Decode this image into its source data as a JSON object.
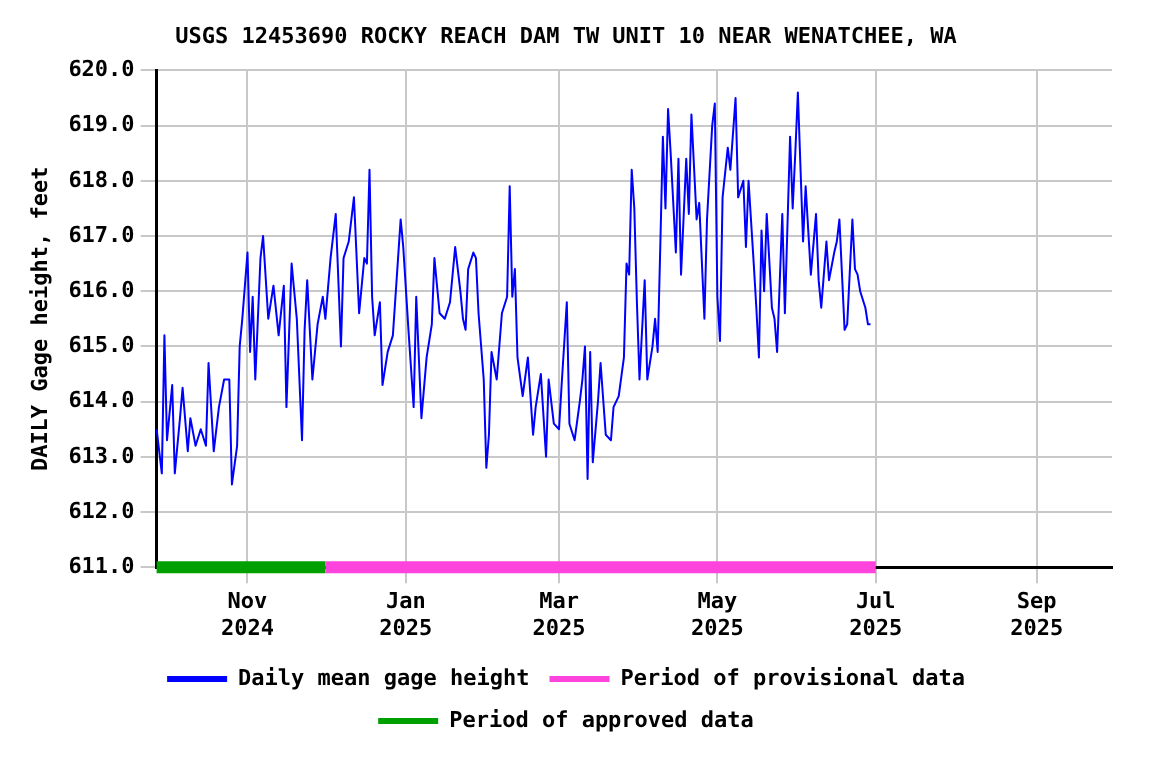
{
  "chart_data": {
    "type": "line",
    "title": "USGS 12453690 ROCKY REACH DAM TW UNIT 10 NEAR WENATCHEE, WA",
    "ylabel": "DAILY Gage height, feet",
    "xlim": [
      "2024-09-27",
      "2025-09-30"
    ],
    "xticks": [
      {
        "value": "2024-11-01",
        "label": "Nov 2024"
      },
      {
        "value": "2025-01-01",
        "label": "Jan 2025"
      },
      {
        "value": "2025-03-01",
        "label": "Mar 2025"
      },
      {
        "value": "2025-05-01",
        "label": "May 2025"
      },
      {
        "value": "2025-07-01",
        "label": "Jul 2025"
      },
      {
        "value": "2025-09-01",
        "label": "Sep 2025"
      }
    ],
    "ylim": [
      611,
      620
    ],
    "yticks": [
      {
        "value": 611,
        "label": "611.0"
      },
      {
        "value": 612,
        "label": "612.0"
      },
      {
        "value": 613,
        "label": "613.0"
      },
      {
        "value": 614,
        "label": "614.0"
      },
      {
        "value": 615,
        "label": "615.0"
      },
      {
        "value": 616,
        "label": "616.0"
      },
      {
        "value": 617,
        "label": "617.0"
      },
      {
        "value": 618,
        "label": "618.0"
      },
      {
        "value": 619,
        "label": "619.0"
      },
      {
        "value": 620,
        "label": "620.0"
      }
    ],
    "grid": true,
    "legend": "bottom",
    "marker": "none",
    "line_style": "solid",
    "series": [
      {
        "name": "Daily mean gage height",
        "color": "#0000ff",
        "x": [
          "2024-09-27",
          "2024-09-29",
          "2024-09-30",
          "2024-10-01",
          "2024-10-03",
          "2024-10-04",
          "2024-10-06",
          "2024-10-07",
          "2024-10-09",
          "2024-10-10",
          "2024-10-12",
          "2024-10-14",
          "2024-10-16",
          "2024-10-17",
          "2024-10-19",
          "2024-10-21",
          "2024-10-23",
          "2024-10-25",
          "2024-10-26",
          "2024-10-28",
          "2024-10-29",
          "2024-10-30",
          "2024-11-01",
          "2024-11-02",
          "2024-11-03",
          "2024-11-04",
          "2024-11-06",
          "2024-11-07",
          "2024-11-09",
          "2024-11-11",
          "2024-11-13",
          "2024-11-15",
          "2024-11-16",
          "2024-11-18",
          "2024-11-20",
          "2024-11-22",
          "2024-11-23",
          "2024-11-24",
          "2024-11-26",
          "2024-11-28",
          "2024-11-30",
          "2024-12-01",
          "2024-12-03",
          "2024-12-05",
          "2024-12-07",
          "2024-12-08",
          "2024-12-10",
          "2024-12-12",
          "2024-12-14",
          "2024-12-16",
          "2024-12-17",
          "2024-12-18",
          "2024-12-19",
          "2024-12-20",
          "2024-12-22",
          "2024-12-23",
          "2024-12-25",
          "2024-12-27",
          "2024-12-29",
          "2024-12-30",
          "2024-12-31",
          "2025-01-02",
          "2025-01-04",
          "2025-01-05",
          "2025-01-07",
          "2025-01-09",
          "2025-01-11",
          "2025-01-12",
          "2025-01-14",
          "2025-01-16",
          "2025-01-18",
          "2025-01-20",
          "2025-01-22",
          "2025-01-23",
          "2025-01-24",
          "2025-01-25",
          "2025-01-27",
          "2025-01-28",
          "2025-01-29",
          "2025-01-31",
          "2025-02-01",
          "2025-02-02",
          "2025-02-03",
          "2025-02-05",
          "2025-02-07",
          "2025-02-09",
          "2025-02-10",
          "2025-02-11",
          "2025-02-12",
          "2025-02-13",
          "2025-02-15",
          "2025-02-17",
          "2025-02-19",
          "2025-02-20",
          "2025-02-22",
          "2025-02-24",
          "2025-02-25",
          "2025-02-27",
          "2025-03-01",
          "2025-03-02",
          "2025-03-04",
          "2025-03-05",
          "2025-03-07",
          "2025-03-09",
          "2025-03-10",
          "2025-03-11",
          "2025-03-12",
          "2025-03-13",
          "2025-03-14",
          "2025-03-16",
          "2025-03-17",
          "2025-03-19",
          "2025-03-21",
          "2025-03-22",
          "2025-03-24",
          "2025-03-26",
          "2025-03-27",
          "2025-03-28",
          "2025-03-29",
          "2025-03-30",
          "2025-03-31",
          "2025-04-01",
          "2025-04-03",
          "2025-04-04",
          "2025-04-06",
          "2025-04-07",
          "2025-04-08",
          "2025-04-09",
          "2025-04-10",
          "2025-04-11",
          "2025-04-12",
          "2025-04-13",
          "2025-04-15",
          "2025-04-16",
          "2025-04-17",
          "2025-04-19",
          "2025-04-20",
          "2025-04-21",
          "2025-04-23",
          "2025-04-24",
          "2025-04-26",
          "2025-04-27",
          "2025-04-29",
          "2025-04-30",
          "2025-05-01",
          "2025-05-02",
          "2025-05-03",
          "2025-05-05",
          "2025-05-06",
          "2025-05-08",
          "2025-05-09",
          "2025-05-11",
          "2025-05-12",
          "2025-05-13",
          "2025-05-15",
          "2025-05-16",
          "2025-05-17",
          "2025-05-18",
          "2025-05-19",
          "2025-05-20",
          "2025-05-22",
          "2025-05-23",
          "2025-05-24",
          "2025-05-26",
          "2025-05-27",
          "2025-05-29",
          "2025-05-30",
          "2025-05-31",
          "2025-06-01",
          "2025-06-03",
          "2025-06-04",
          "2025-06-06",
          "2025-06-08",
          "2025-06-09",
          "2025-06-10",
          "2025-06-12",
          "2025-06-13",
          "2025-06-15",
          "2025-06-16",
          "2025-06-17",
          "2025-06-19",
          "2025-06-20",
          "2025-06-22",
          "2025-06-23",
          "2025-06-24",
          "2025-06-25",
          "2025-06-27",
          "2025-06-28",
          "2025-06-29"
        ],
        "values": [
          613.5,
          612.7,
          615.2,
          613.3,
          614.3,
          612.7,
          613.7,
          614.25,
          613.1,
          613.7,
          613.2,
          613.5,
          613.2,
          614.7,
          613.1,
          613.9,
          614.4,
          614.4,
          612.5,
          613.2,
          615.0,
          615.5,
          616.7,
          614.9,
          615.9,
          614.4,
          616.6,
          617.0,
          615.5,
          616.1,
          615.2,
          616.1,
          613.9,
          616.5,
          615.5,
          613.3,
          615.3,
          616.2,
          614.4,
          615.4,
          615.9,
          615.5,
          616.6,
          617.4,
          615.0,
          616.6,
          616.9,
          617.7,
          615.6,
          616.6,
          616.5,
          618.2,
          615.9,
          615.2,
          615.8,
          614.3,
          614.9,
          615.2,
          616.6,
          617.3,
          616.8,
          615.3,
          613.9,
          615.9,
          613.7,
          614.8,
          615.4,
          616.6,
          615.6,
          615.5,
          615.8,
          616.8,
          616.0,
          615.5,
          615.3,
          616.4,
          616.7,
          616.6,
          615.6,
          614.4,
          612.8,
          613.4,
          614.9,
          614.4,
          615.6,
          615.9,
          617.9,
          615.9,
          616.4,
          614.8,
          614.1,
          614.8,
          613.4,
          613.9,
          614.5,
          613.0,
          614.4,
          613.6,
          613.5,
          614.3,
          615.8,
          613.6,
          613.3,
          614.0,
          614.4,
          615.0,
          612.6,
          614.9,
          612.9,
          614.0,
          614.7,
          613.4,
          613.3,
          613.9,
          614.1,
          614.8,
          616.5,
          616.3,
          618.2,
          617.5,
          615.8,
          614.4,
          616.2,
          614.4,
          615.0,
          615.5,
          614.9,
          616.8,
          618.8,
          617.5,
          619.3,
          618.5,
          616.7,
          618.4,
          616.3,
          618.4,
          617.4,
          619.2,
          617.3,
          617.6,
          615.5,
          617.3,
          619.0,
          619.4,
          615.9,
          615.1,
          617.7,
          618.6,
          618.2,
          619.5,
          617.7,
          618.0,
          616.8,
          618.0,
          616.5,
          615.7,
          614.8,
          617.1,
          616.0,
          617.4,
          615.7,
          615.5,
          614.9,
          617.4,
          615.6,
          618.8,
          617.5,
          618.5,
          619.6,
          616.9,
          617.9,
          616.3,
          617.4,
          616.2,
          615.7,
          616.9,
          616.2,
          616.7,
          616.9,
          617.3,
          615.3,
          615.4,
          617.3,
          616.4,
          616.3,
          616.0,
          615.7,
          615.4,
          615.4
        ]
      },
      {
        "name": "Period of provisional data",
        "color": "#ff44dd",
        "x": [
          "2024-12-01",
          "2025-07-01"
        ],
        "values": [
          611,
          611
        ]
      },
      {
        "name": "Period of approved data",
        "color": "#00a000",
        "x": [
          "2024-09-27",
          "2024-12-01"
        ],
        "values": [
          611,
          611
        ]
      }
    ]
  }
}
